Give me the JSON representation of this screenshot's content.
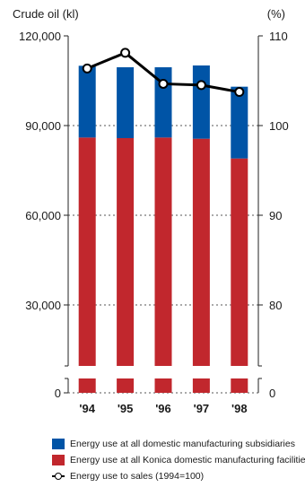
{
  "chart_data": {
    "type": "bar",
    "left_axis_title": "Crude oil (kl)",
    "right_axis_title": "(%)",
    "categories": [
      "'94",
      "'95",
      "'96",
      "'97",
      "'98"
    ],
    "series": [
      {
        "name": "Energy use at all Konica domestic manufacturing facilities",
        "values": [
          86000,
          85800,
          86000,
          85600,
          79000
        ],
        "color": "#c1272d",
        "axis": "left"
      },
      {
        "name": "Energy use at all domestic manufacturing subsidiaries",
        "values": [
          24000,
          23700,
          23500,
          24500,
          24000
        ],
        "color": "#0054a6",
        "axis": "left"
      },
      {
        "name": "Energy use to sales (1994=100)",
        "values": [
          100.0,
          104.8,
          95.3,
          94.9,
          92.8
        ],
        "color": "#000000",
        "axis": "right",
        "kind": "line"
      }
    ],
    "left_ticks": [
      "120,000",
      "90,000",
      "60,000",
      "30,000",
      "0"
    ],
    "right_ticks": [
      "110",
      "100",
      "90",
      "80",
      "0"
    ],
    "ylim_left": [
      0,
      120000
    ],
    "ylim_right": [
      0,
      110
    ],
    "axis_break": true
  },
  "legend": [
    {
      "label": "Energy use at all domestic manufacturing subsidiaries",
      "color": "#0054a6",
      "kind": "box"
    },
    {
      "label": "Energy use at all Konica domestic manufacturing facilities",
      "color": "#c1272d",
      "kind": "box"
    },
    {
      "label": "Energy use to sales (1994=100)",
      "kind": "marker"
    }
  ]
}
